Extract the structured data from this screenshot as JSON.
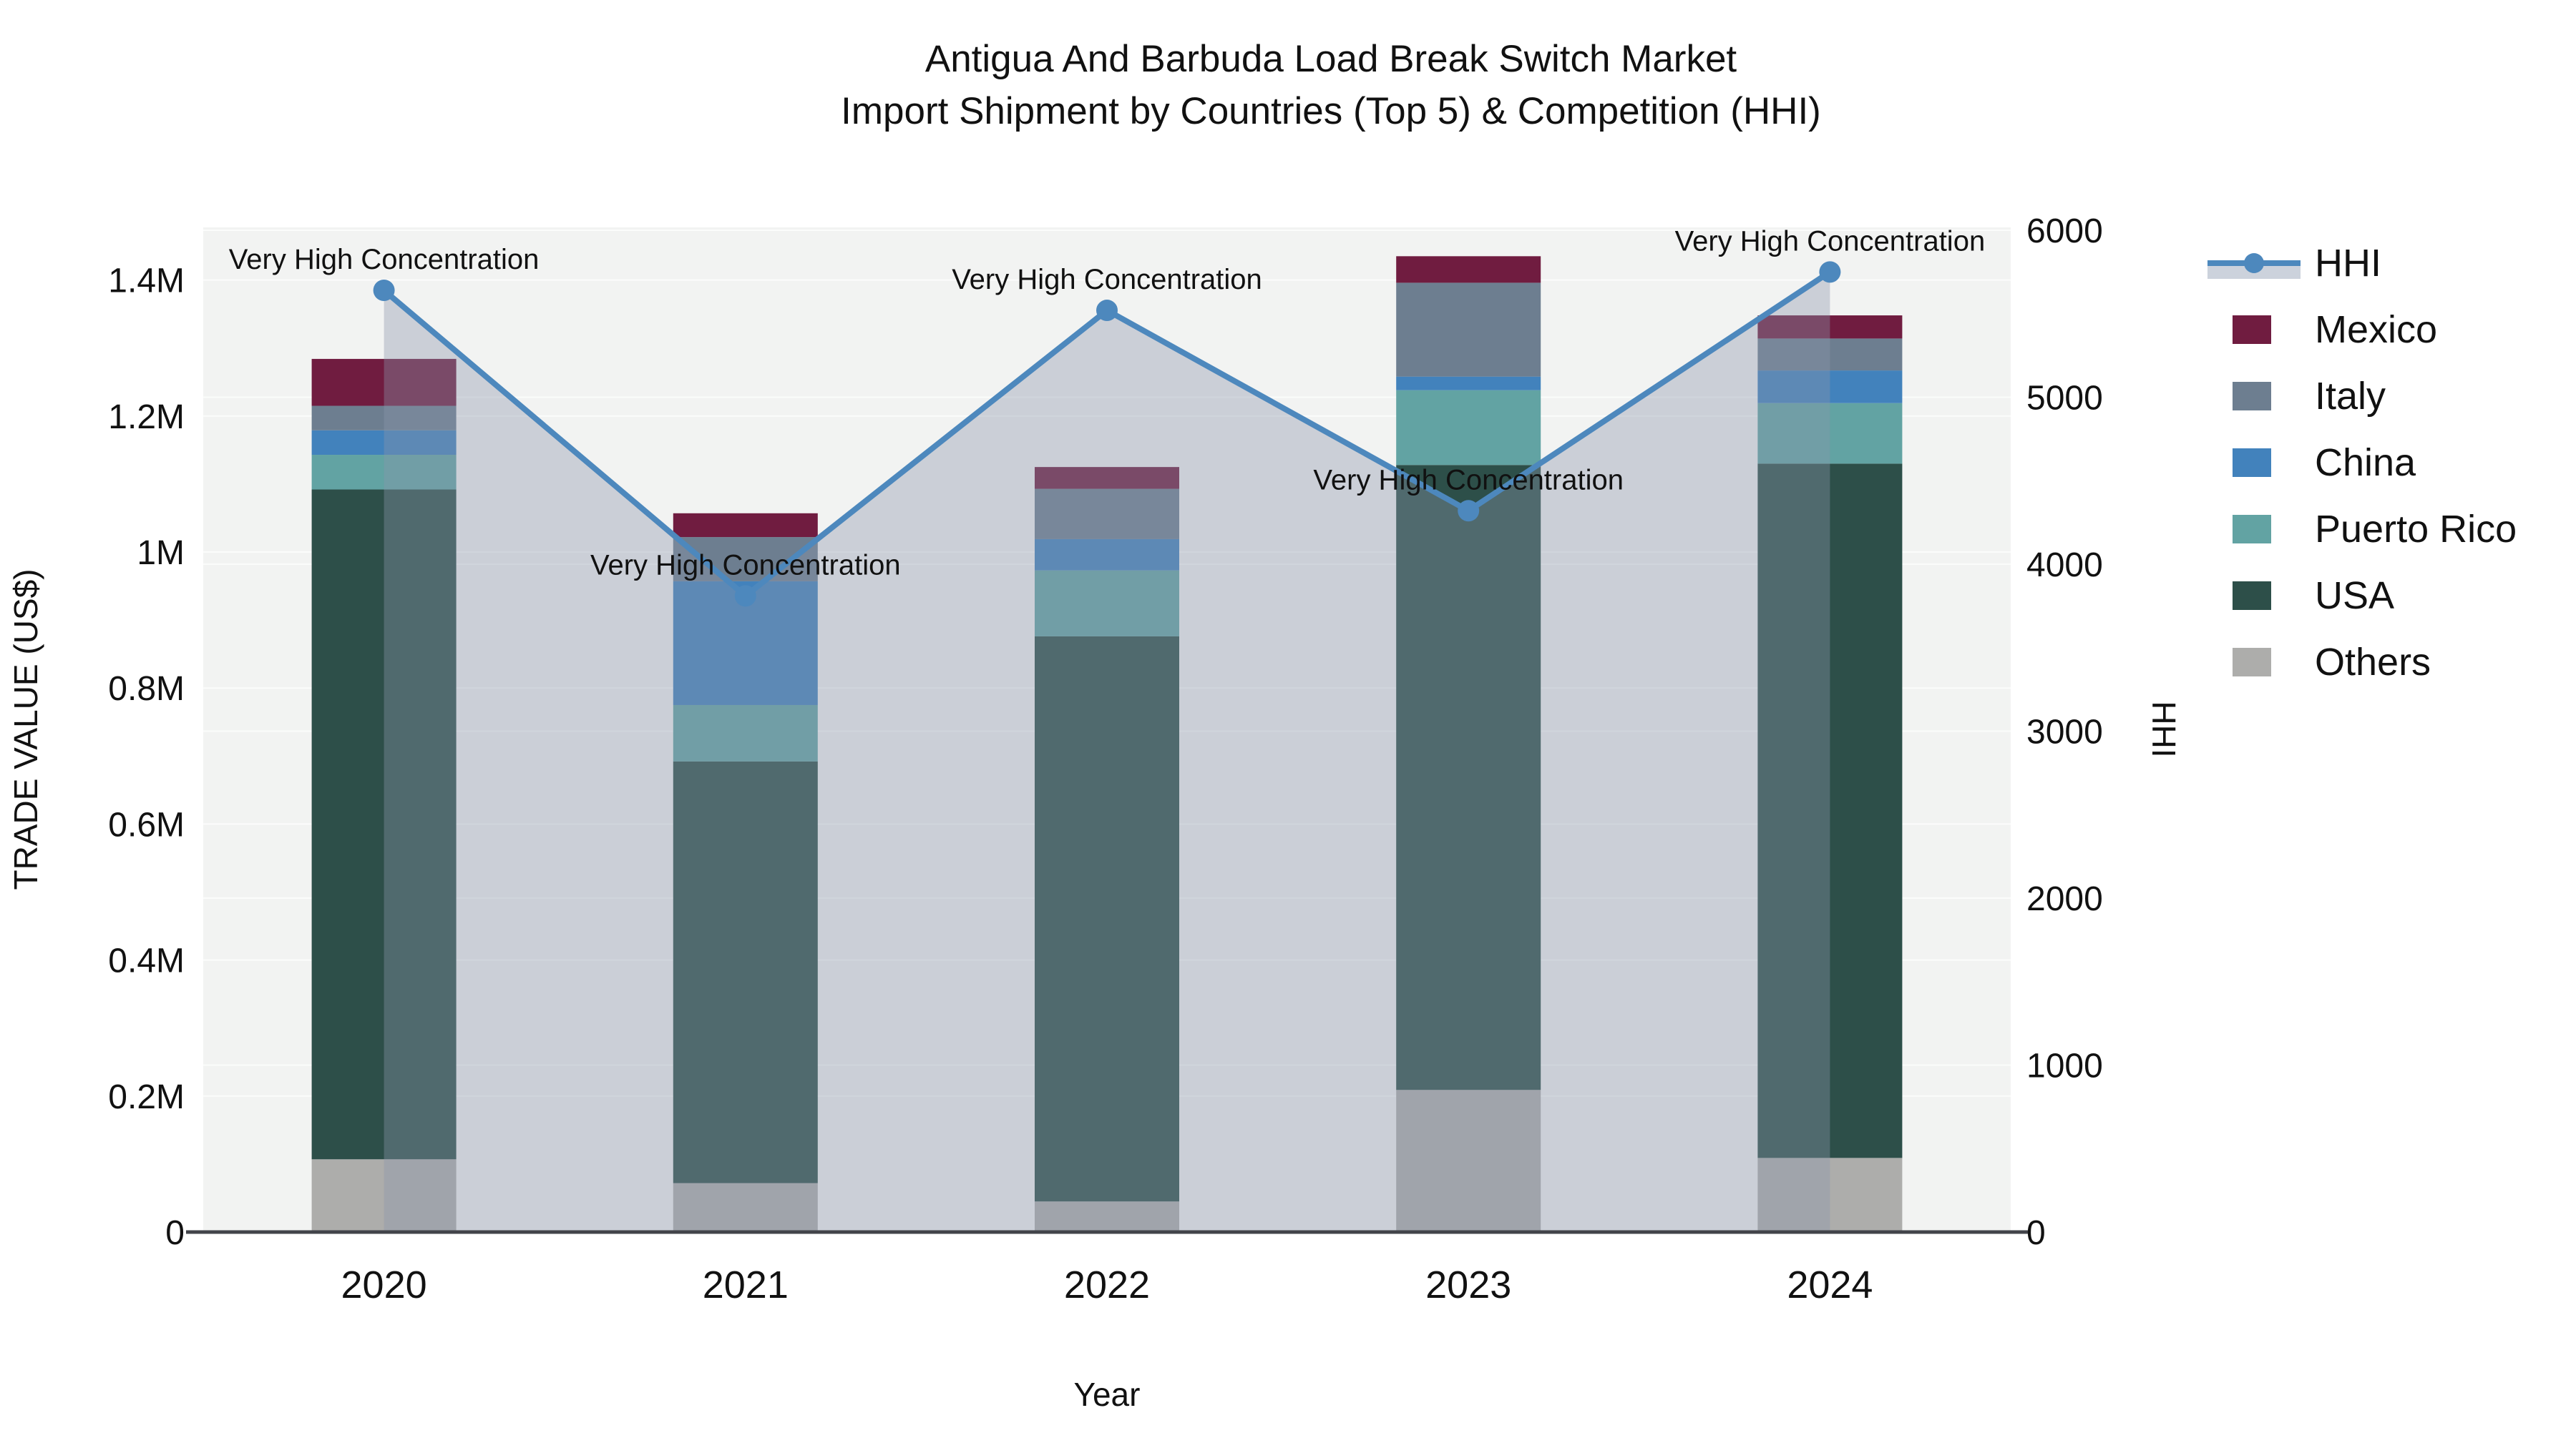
{
  "title": {
    "line1": "Antigua And Barbuda Load Break Switch Market",
    "line2": "Import Shipment by Countries (Top 5) & Competition (HHI)"
  },
  "axes": {
    "x": {
      "title": "Year",
      "categories": [
        "2020",
        "2021",
        "2022",
        "2023",
        "2024"
      ]
    },
    "y_left": {
      "title": "TRADE VALUE (US$)",
      "tick_labels": [
        "0",
        "0.2M",
        "0.4M",
        "0.6M",
        "0.8M",
        "1M",
        "1.2M",
        "1.4M"
      ],
      "tick_values": [
        0,
        200000,
        400000,
        600000,
        800000,
        1000000,
        1200000,
        1400000
      ],
      "range": [
        0,
        1477400
      ]
    },
    "y_right": {
      "title": "HHI",
      "tick_labels": [
        "0",
        "1000",
        "2000",
        "3000",
        "4000",
        "5000",
        "6000"
      ],
      "tick_values": [
        0,
        1000,
        2000,
        3000,
        4000,
        5000,
        6000
      ],
      "range": [
        0,
        6017
      ]
    }
  },
  "legend": [
    {
      "label": "HHI",
      "type": "line",
      "color": "#4d88bd"
    },
    {
      "label": "Mexico",
      "type": "swatch",
      "color": "#701c40"
    },
    {
      "label": "Italy",
      "type": "swatch",
      "color": "#6d7e90"
    },
    {
      "label": "China",
      "type": "swatch",
      "color": "#4282bc"
    },
    {
      "label": "Puerto Rico",
      "type": "swatch",
      "color": "#62a3a3"
    },
    {
      "label": "USA",
      "type": "swatch",
      "color": "#2d4f49"
    },
    {
      "label": "Others",
      "type": "swatch",
      "color": "#adadab"
    }
  ],
  "chart_data": {
    "type": "bar",
    "subtype": "stacked-bars-with-line-overlay",
    "categories": [
      "2020",
      "2021",
      "2022",
      "2023",
      "2024"
    ],
    "xlabel": "Year",
    "ylabel_left": "TRADE VALUE (US$)",
    "ylabel_right": "HHI",
    "ylim_left": [
      0,
      1477400
    ],
    "ylim_right": [
      0,
      6017
    ],
    "grid": true,
    "legend_position": "right",
    "series": [
      {
        "name": "Others",
        "color": "#adadab",
        "values": [
          107000,
          72000,
          45000,
          209000,
          109000
        ]
      },
      {
        "name": "USA",
        "color": "#2d4f49",
        "values": [
          985000,
          620000,
          831000,
          919000,
          1021000
        ]
      },
      {
        "name": "Puerto Rico",
        "color": "#62a3a3",
        "values": [
          51000,
          83000,
          97000,
          110000,
          89000
        ]
      },
      {
        "name": "China",
        "color": "#4282bc",
        "values": [
          36000,
          182000,
          46000,
          20000,
          48000
        ]
      },
      {
        "name": "Italy",
        "color": "#6d7e90",
        "values": [
          36000,
          65000,
          74000,
          138000,
          47000
        ]
      },
      {
        "name": "Mexico",
        "color": "#701c40",
        "values": [
          69000,
          35000,
          32000,
          39000,
          34000
        ]
      }
    ],
    "bar_totals": [
      1284000,
      1057000,
      1125000,
      1435000,
      1348000
    ],
    "line_series": {
      "name": "HHI",
      "axis": "right",
      "color": "#4d88bd",
      "area_fill": "rgba(140,150,172,0.38)",
      "values": [
        5640,
        3810,
        5520,
        4320,
        5750
      ]
    },
    "annotations": [
      {
        "x": "2020",
        "text": "Very High Concentration"
      },
      {
        "x": "2021",
        "text": "Very High Concentration"
      },
      {
        "x": "2022",
        "text": "Very High Concentration"
      },
      {
        "x": "2023",
        "text": "Very High Concentration"
      },
      {
        "x": "2024",
        "text": "Very High Concentration"
      }
    ]
  },
  "colors": {
    "plot_background": "#f2f3f2",
    "paper_background": "#ffffff",
    "gridline": "#ffffff",
    "axis_line": "#42444a",
    "hhi_line": "#4d88bd",
    "legend_line_band": "#ccd2dc",
    "text": "#111111"
  }
}
